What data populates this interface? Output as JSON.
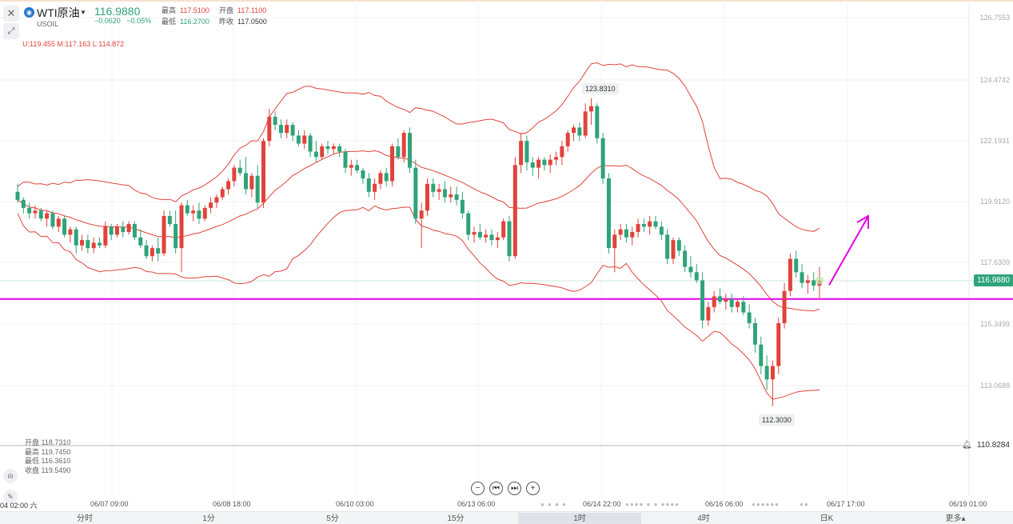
{
  "header": {
    "symbol_icon": "oil-symbol-icon",
    "symbol_name": "WTI原油",
    "symbol_code": "USOIL",
    "last_price": "116.9880",
    "change": "−0.0620",
    "change_pct": "−0.05%",
    "high_label": "最高",
    "high_value": "117.5100",
    "open_label": "开盘",
    "open_value": "117.1100",
    "low_label": "最低",
    "low_value": "116.2700",
    "prev_close_label": "昨收",
    "prev_close_value": "117.0500"
  },
  "indicator": {
    "boll_text": "U:119.455   M:117.163   L:114.872"
  },
  "ohlc_box": {
    "open": "开盘 118.7310",
    "high": "最高 119.7450",
    "low": "最低 116.3610",
    "close": "收盘 119.5490"
  },
  "price_axis": [
    "126.7553",
    "124.4742",
    "122.1931",
    "119.9120",
    "117.6309",
    "115.3499",
    "113.0688"
  ],
  "current_price_tag": "116.9880",
  "volume_axis_label": "110.8284",
  "callouts": {
    "high": "123.8310",
    "low": "112.3030"
  },
  "x_axis": {
    "left_label": "04 02:00 六",
    "labels": [
      "06/07 09:00",
      "06/08 18:00",
      "06/10 03:00",
      "06/13 06:00",
      "06/14 22:00",
      "06/16 06:00",
      "06/17 17:00",
      "06/19 01:00"
    ]
  },
  "nav_buttons": {
    "zoom_out": "−",
    "prev": "⏮",
    "next": "⏭",
    "zoom_in": "+"
  },
  "timeframes": {
    "items": [
      "分时",
      "1分",
      "5分",
      "15分",
      "1时",
      "4时",
      "日K",
      "更多▴"
    ],
    "active": "1时"
  },
  "colors": {
    "up": "#e0433b",
    "down": "#2fa37a",
    "band": "#e0433b",
    "support_line": "#e600e6",
    "arrow": "#e600e6"
  },
  "chart_data": {
    "type": "candlestick",
    "ylim": [
      110.0,
      127.5
    ],
    "support_level": 116.3,
    "candles": [
      [
        120.3,
        120.6,
        119.9,
        120.0
      ],
      [
        120.0,
        120.1,
        119.5,
        119.7
      ],
      [
        119.7,
        119.9,
        119.3,
        119.5
      ],
      [
        119.5,
        119.8,
        119.3,
        119.6
      ],
      [
        119.6,
        119.7,
        119.2,
        119.3
      ],
      [
        119.3,
        119.6,
        119.0,
        119.5
      ],
      [
        119.5,
        119.6,
        118.9,
        119.0
      ],
      [
        119.0,
        119.4,
        118.8,
        119.3
      ],
      [
        119.3,
        119.4,
        118.6,
        118.7
      ],
      [
        118.7,
        119.0,
        118.4,
        118.9
      ],
      [
        118.9,
        119.0,
        118.0,
        118.3
      ],
      [
        118.3,
        118.7,
        118.1,
        118.5
      ],
      [
        118.5,
        118.7,
        118.0,
        118.2
      ],
      [
        118.2,
        118.6,
        118.0,
        118.4
      ],
      [
        118.4,
        118.6,
        118.2,
        118.3
      ],
      [
        118.3,
        119.2,
        118.2,
        119.0
      ],
      [
        119.0,
        119.1,
        118.5,
        118.7
      ],
      [
        118.7,
        119.1,
        118.6,
        119.0
      ],
      [
        119.0,
        119.2,
        118.6,
        118.8
      ],
      [
        118.8,
        119.2,
        118.7,
        119.1
      ],
      [
        119.1,
        119.2,
        118.5,
        118.6
      ],
      [
        118.6,
        118.9,
        118.2,
        118.3
      ],
      [
        118.3,
        118.5,
        117.8,
        117.9
      ],
      [
        117.9,
        118.3,
        117.7,
        118.2
      ],
      [
        118.2,
        118.6,
        117.7,
        118.0
      ],
      [
        118.0,
        119.6,
        117.9,
        119.4
      ],
      [
        119.4,
        119.6,
        119.0,
        119.1
      ],
      [
        119.1,
        119.6,
        118.0,
        118.2
      ],
      [
        118.2,
        119.9,
        117.3,
        119.8
      ],
      [
        119.8,
        120.0,
        119.4,
        119.5
      ],
      [
        119.5,
        119.8,
        119.2,
        119.6
      ],
      [
        119.6,
        119.9,
        119.1,
        119.3
      ],
      [
        119.3,
        119.8,
        119.2,
        119.7
      ],
      [
        119.7,
        120.1,
        119.5,
        119.9
      ],
      [
        119.9,
        120.2,
        119.7,
        120.1
      ],
      [
        120.1,
        120.5,
        120.0,
        120.4
      ],
      [
        120.4,
        120.8,
        120.2,
        120.7
      ],
      [
        120.7,
        121.3,
        120.5,
        121.2
      ],
      [
        121.2,
        121.5,
        120.9,
        121.0
      ],
      [
        121.0,
        121.6,
        120.2,
        120.4
      ],
      [
        120.4,
        121.0,
        120.1,
        120.9
      ],
      [
        120.9,
        121.3,
        119.7,
        119.9
      ],
      [
        119.9,
        122.3,
        119.7,
        122.2
      ],
      [
        122.2,
        123.4,
        122.0,
        123.1
      ],
      [
        123.1,
        123.3,
        122.6,
        122.8
      ],
      [
        122.8,
        123.0,
        122.3,
        122.5
      ],
      [
        122.5,
        123.0,
        122.3,
        122.8
      ],
      [
        122.8,
        122.9,
        122.2,
        122.4
      ],
      [
        122.4,
        122.6,
        122.0,
        122.1
      ],
      [
        122.1,
        122.6,
        121.9,
        122.4
      ],
      [
        122.4,
        122.5,
        121.6,
        121.8
      ],
      [
        121.8,
        122.2,
        121.4,
        121.6
      ],
      [
        121.6,
        122.1,
        121.5,
        122.0
      ],
      [
        122.0,
        122.2,
        121.7,
        121.9
      ],
      [
        121.9,
        122.1,
        121.7,
        122.0
      ],
      [
        122.0,
        122.1,
        121.6,
        121.8
      ],
      [
        121.8,
        121.9,
        121.0,
        121.2
      ],
      [
        121.2,
        121.5,
        120.9,
        121.3
      ],
      [
        121.3,
        121.5,
        121.0,
        121.1
      ],
      [
        121.1,
        121.2,
        120.6,
        120.8
      ],
      [
        120.8,
        121.0,
        120.1,
        120.3
      ],
      [
        120.3,
        120.8,
        120.0,
        120.6
      ],
      [
        120.6,
        121.1,
        120.4,
        121.0
      ],
      [
        121.0,
        121.2,
        120.5,
        120.7
      ],
      [
        120.7,
        122.1,
        120.5,
        122.0
      ],
      [
        122.0,
        122.3,
        121.5,
        121.6
      ],
      [
        121.6,
        122.6,
        121.4,
        122.5
      ],
      [
        122.5,
        122.7,
        121.0,
        121.2
      ],
      [
        121.2,
        121.5,
        119.1,
        119.3
      ],
      [
        119.3,
        119.9,
        118.2,
        119.6
      ],
      [
        119.6,
        120.8,
        119.4,
        120.6
      ],
      [
        120.6,
        120.8,
        120.1,
        120.3
      ],
      [
        120.3,
        120.6,
        120.0,
        120.4
      ],
      [
        120.4,
        120.7,
        119.9,
        120.1
      ],
      [
        120.1,
        120.5,
        119.9,
        120.2
      ],
      [
        120.2,
        120.5,
        119.8,
        120.0
      ],
      [
        120.0,
        120.3,
        119.3,
        119.5
      ],
      [
        119.5,
        119.6,
        118.5,
        118.7
      ],
      [
        118.7,
        119.0,
        118.4,
        118.8
      ],
      [
        118.8,
        119.1,
        118.5,
        118.6
      ],
      [
        118.6,
        118.9,
        118.4,
        118.7
      ],
      [
        118.7,
        118.9,
        118.3,
        118.5
      ],
      [
        118.5,
        118.8,
        118.2,
        118.6
      ],
      [
        118.6,
        119.3,
        118.5,
        119.2
      ],
      [
        119.2,
        119.4,
        117.7,
        117.9
      ],
      [
        117.9,
        121.6,
        117.8,
        121.3
      ],
      [
        121.3,
        122.5,
        121.0,
        122.2
      ],
      [
        122.2,
        122.4,
        121.1,
        121.4
      ],
      [
        121.4,
        121.6,
        120.9,
        121.2
      ],
      [
        121.2,
        121.6,
        120.8,
        121.5
      ],
      [
        121.5,
        121.6,
        121.1,
        121.3
      ],
      [
        121.3,
        121.7,
        121.0,
        121.5
      ],
      [
        121.5,
        121.8,
        121.3,
        121.6
      ],
      [
        121.6,
        122.2,
        121.3,
        122.0
      ],
      [
        122.0,
        122.6,
        121.8,
        122.5
      ],
      [
        122.5,
        122.8,
        122.2,
        122.7
      ],
      [
        122.7,
        122.9,
        122.2,
        122.4
      ],
      [
        122.4,
        123.6,
        122.3,
        123.3
      ],
      [
        123.3,
        123.8,
        122.8,
        123.5
      ],
      [
        123.5,
        123.6,
        122.1,
        122.3
      ],
      [
        122.3,
        122.5,
        120.6,
        120.8
      ],
      [
        120.8,
        121.0,
        118.0,
        118.2
      ],
      [
        118.2,
        118.9,
        117.3,
        118.7
      ],
      [
        118.7,
        119.1,
        118.5,
        118.9
      ],
      [
        118.9,
        119.1,
        118.4,
        118.6
      ],
      [
        118.6,
        119.0,
        118.3,
        118.8
      ],
      [
        118.8,
        119.3,
        118.6,
        119.1
      ],
      [
        119.1,
        119.3,
        118.8,
        119.0
      ],
      [
        119.0,
        119.4,
        118.7,
        119.2
      ],
      [
        119.2,
        119.4,
        118.9,
        119.0
      ],
      [
        119.0,
        119.2,
        118.5,
        118.7
      ],
      [
        118.7,
        118.9,
        117.6,
        117.8
      ],
      [
        117.8,
        118.6,
        117.6,
        118.5
      ],
      [
        118.5,
        118.6,
        117.9,
        118.1
      ],
      [
        118.1,
        118.3,
        117.3,
        117.5
      ],
      [
        117.5,
        117.9,
        117.1,
        117.3
      ],
      [
        117.3,
        117.6,
        116.9,
        117.0
      ],
      [
        117.0,
        117.3,
        115.2,
        115.5
      ],
      [
        115.5,
        116.2,
        115.3,
        116.0
      ],
      [
        116.0,
        116.6,
        115.8,
        116.4
      ],
      [
        116.4,
        116.7,
        116.1,
        116.2
      ],
      [
        116.2,
        116.5,
        115.9,
        116.3
      ],
      [
        116.3,
        116.5,
        115.8,
        116.0
      ],
      [
        116.0,
        116.3,
        115.8,
        116.2
      ],
      [
        116.2,
        116.4,
        115.7,
        115.8
      ],
      [
        115.8,
        116.1,
        115.2,
        115.4
      ],
      [
        115.4,
        115.6,
        114.3,
        114.6
      ],
      [
        114.6,
        114.9,
        113.5,
        113.8
      ],
      [
        113.8,
        114.2,
        112.9,
        113.3
      ],
      [
        113.3,
        114.0,
        112.3,
        113.8
      ],
      [
        113.8,
        115.6,
        113.5,
        115.4
      ],
      [
        115.4,
        116.9,
        115.2,
        116.6
      ],
      [
        116.6,
        118.0,
        116.4,
        117.8
      ],
      [
        117.8,
        118.1,
        117.1,
        117.3
      ],
      [
        117.3,
        117.6,
        116.7,
        116.9
      ],
      [
        116.9,
        117.2,
        116.5,
        117.0
      ],
      [
        117.0,
        117.3,
        116.6,
        116.8
      ],
      [
        116.8,
        117.5,
        116.3,
        117.0
      ]
    ],
    "bands": {
      "upper_start": 119.3,
      "mid_start": 119.8,
      "lower_start": 114.6
    }
  }
}
